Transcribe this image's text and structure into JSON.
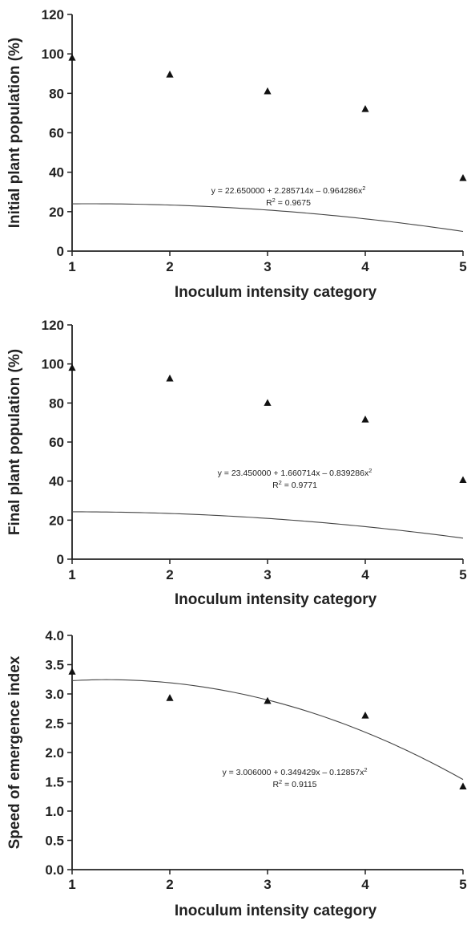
{
  "chart_data": [
    {
      "type": "scatter",
      "xlabel": "Inoculum intensity category",
      "ylabel": "Initial plant population (%)",
      "xlim": [
        1,
        5
      ],
      "ylim": [
        0,
        120
      ],
      "xticks": [
        "1",
        "2",
        "3",
        "4",
        "5"
      ],
      "yticks": [
        "0",
        "20",
        "40",
        "60",
        "80",
        "100",
        "120"
      ],
      "x": [
        1,
        2,
        3,
        4,
        5
      ],
      "y": [
        98,
        89.5,
        81,
        72,
        37
      ],
      "trendline": {
        "intercept": 22.65,
        "b1": 2.285714,
        "b2": -0.964286
      },
      "equation": "y = 22.650000 + 2.285714x – 0.964286x",
      "equation_sup": "2",
      "r2": "R",
      "r2_sup": "2",
      "r2_value": " = 0.9675"
    },
    {
      "type": "scatter",
      "xlabel": "Inoculum intensity category",
      "ylabel": "Final plant population (%)",
      "xlim": [
        1,
        5
      ],
      "ylim": [
        0,
        120
      ],
      "xticks": [
        "1",
        "2",
        "3",
        "4",
        "5"
      ],
      "yticks": [
        "0",
        "20",
        "40",
        "60",
        "80",
        "100",
        "120"
      ],
      "x": [
        1,
        2,
        3,
        4,
        5
      ],
      "y": [
        98,
        92.5,
        80,
        71.5,
        40.5
      ],
      "trendline": {
        "intercept": 23.45,
        "b1": 1.660714,
        "b2": -0.839286
      },
      "equation": "y = 23.450000 + 1.660714x – 0.839286x",
      "equation_sup": "2",
      "r2": "R",
      "r2_sup": "2",
      "r2_value": " = 0.9771"
    },
    {
      "type": "scatter",
      "xlabel": "Inoculum intensity category",
      "ylabel": "Speed of emergence index",
      "xlim": [
        1,
        5
      ],
      "ylim": [
        0,
        4
      ],
      "xticks": [
        "1",
        "2",
        "3",
        "4",
        "5"
      ],
      "yticks": [
        "0.0",
        "0.5",
        "1.0",
        "1.5",
        "2.0",
        "2.5",
        "3.0",
        "3.5",
        "4.0"
      ],
      "x": [
        1,
        2,
        3,
        4,
        5
      ],
      "y": [
        3.38,
        2.93,
        2.88,
        2.63,
        1.42
      ],
      "trendline": {
        "intercept": 3.006,
        "b1": 0.349429,
        "b2": -0.12857
      },
      "equation": "y = 3.006000 + 0.349429x – 0.12857x",
      "equation_sup": "2",
      "r2": "R",
      "r2_sup": "2",
      "r2_value": " = 0.9115"
    }
  ]
}
